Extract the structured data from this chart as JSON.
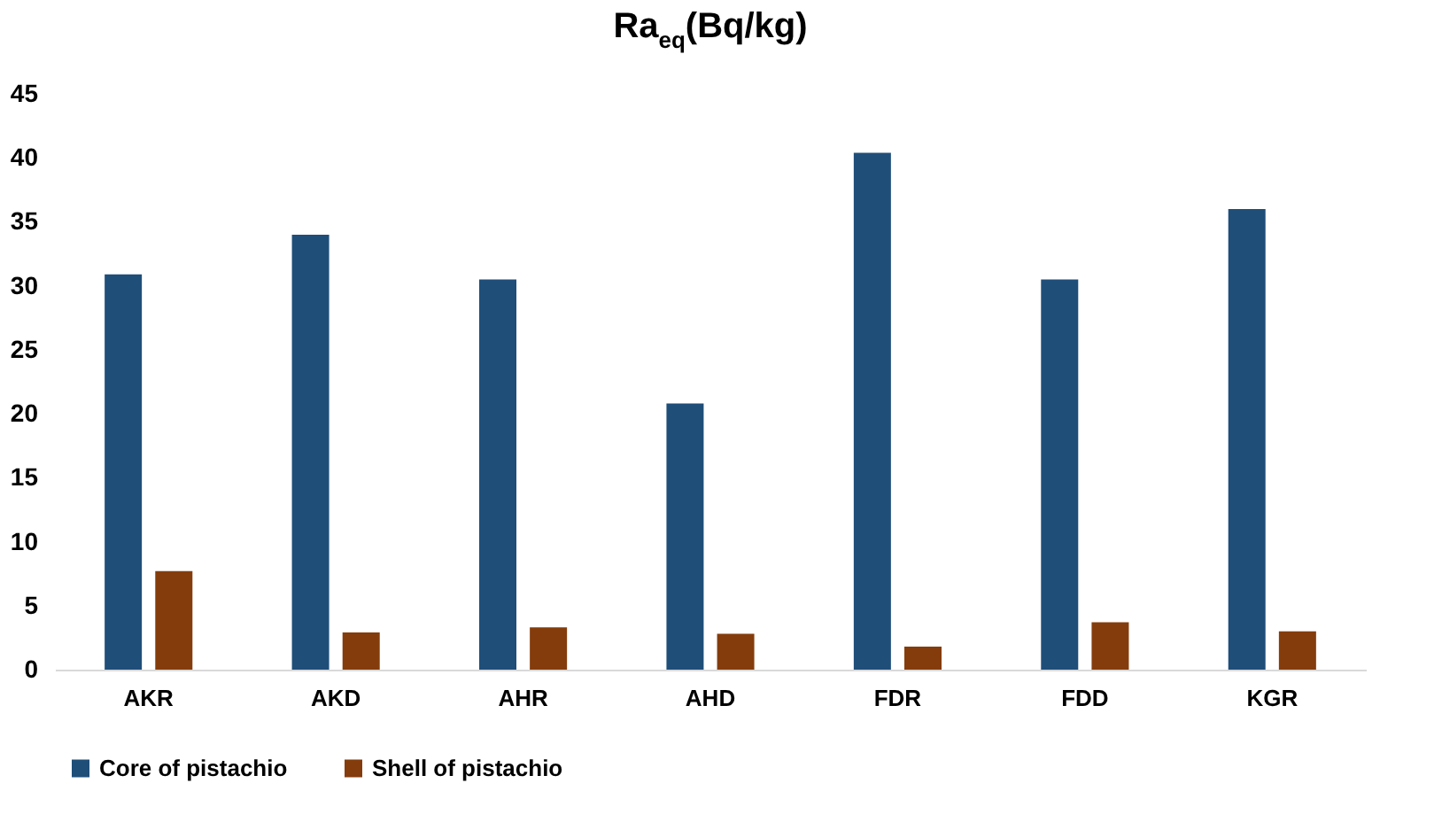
{
  "chart_data": {
    "type": "bar",
    "title": "Ra$_{eq}$(Bq/kg)",
    "categories": [
      "AKR",
      "AKD",
      "AHR",
      "AHD",
      "FDR",
      "FDD",
      "KGR"
    ],
    "series": [
      {
        "name": "Core of pistachio",
        "color": "#1f4e79",
        "values": [
          30.9,
          34.0,
          30.5,
          20.8,
          40.4,
          30.5,
          36.0
        ]
      },
      {
        "name": "Shell of pistachio",
        "color": "#843c0c",
        "values": [
          7.7,
          2.9,
          3.3,
          2.8,
          1.8,
          3.7,
          3.0
        ]
      }
    ],
    "ylim": [
      0,
      45
    ],
    "yticks": [
      0,
      5,
      10,
      15,
      20,
      25,
      30,
      35,
      40,
      45
    ],
    "grid": false,
    "legend": "bottom"
  }
}
